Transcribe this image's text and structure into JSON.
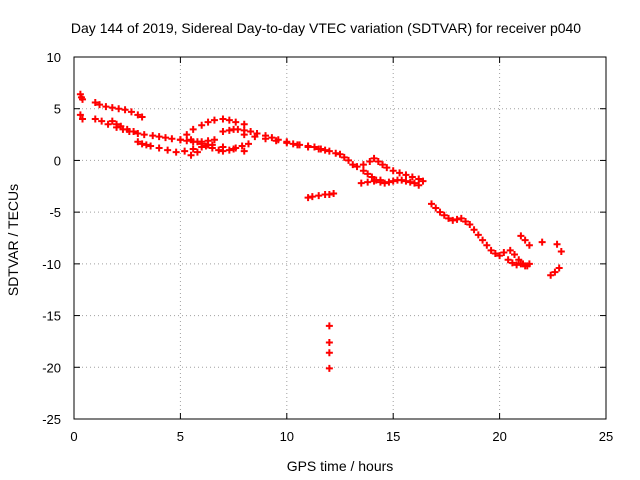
{
  "chart_data": {
    "type": "scatter",
    "title": "Day 144 of 2019, Sidereal Day-to-day VTEC variation (SDTVAR) for receiver p040",
    "xlabel": "GPS time / hours",
    "ylabel": "SDTVAR / TECUs",
    "xlim": [
      0,
      25
    ],
    "ylim": [
      -25,
      10
    ],
    "x_ticks": [
      0,
      5,
      10,
      15,
      20,
      25
    ],
    "x_tick_labels": [
      "0",
      "5",
      "10",
      "15",
      "20",
      "25"
    ],
    "y_ticks": [
      10,
      5,
      0,
      -5,
      -10,
      -15,
      -20,
      -25
    ],
    "y_tick_labels": [
      "10",
      "5",
      "0",
      "-5",
      "-10",
      "-15",
      "-20",
      "-25"
    ],
    "grid": true,
    "marker": "+",
    "series": [
      {
        "name": "SDTVAR",
        "color": "#ff0000",
        "x": [
          0.3,
          0.35,
          0.4,
          0.3,
          0.4,
          1.0,
          1.2,
          1.5,
          1.8,
          2.1,
          2.4,
          2.7,
          3.0,
          3.2,
          1.0,
          1.3,
          1.6,
          2.0,
          2.3,
          2.6,
          1.8,
          2.0,
          2.2,
          2.5,
          2.8,
          3.0,
          3.3,
          3.7,
          4.0,
          4.3,
          4.6,
          5.0,
          5.3,
          5.6,
          6.0,
          6.3,
          6.6,
          3.0,
          3.2,
          3.4,
          3.6,
          4.0,
          4.4,
          4.8,
          5.2,
          5.6,
          6.0,
          6.3,
          5.0,
          5.3,
          5.6,
          6.0,
          6.3,
          6.6,
          7.0,
          7.3,
          7.6,
          8.0,
          5.5,
          5.8,
          6.0,
          6.2,
          6.5,
          6.8,
          7.0,
          7.3,
          7.6,
          7.9,
          8.2,
          7.0,
          7.3,
          7.5,
          7.7,
          8.0,
          8.3,
          8.6,
          9.0,
          9.3,
          9.6,
          10.0,
          10.3,
          10.6,
          11.0,
          11.3,
          11.6,
          12.0,
          12.3,
          8.0,
          8.5,
          9.0,
          9.5,
          10.0,
          10.5,
          11.0,
          11.5,
          11.8,
          6.5,
          7.0,
          7.5,
          8.0,
          5.5,
          5.8,
          11.0,
          11.2,
          11.5,
          11.8,
          12.0,
          12.2,
          12.0,
          12.0,
          12.0,
          12.0,
          12.5,
          12.7,
          12.9,
          13.1,
          13.3,
          13.6,
          13.9,
          14.1,
          14.3,
          14.5,
          14.7,
          15.0,
          15.3,
          15.6,
          15.9,
          16.2,
          16.4,
          13.6,
          13.8,
          14.0,
          14.2,
          14.4,
          14.6,
          14.8,
          15.0,
          15.2,
          15.4,
          15.6,
          15.8,
          16.0,
          16.2,
          13.5,
          13.8,
          14.1,
          14.4,
          16.8,
          17.0,
          17.2,
          17.4,
          17.6,
          17.8,
          18.0,
          18.2,
          18.4,
          18.6,
          18.8,
          19.0,
          19.2,
          19.4,
          19.6,
          19.8,
          20.0,
          20.2,
          20.5,
          20.7,
          20.9,
          21.1,
          21.3,
          20.4,
          20.6,
          20.8,
          21.0,
          21.2,
          21.4,
          21.0,
          21.2,
          21.4,
          22.0,
          22.4,
          22.6,
          22.8,
          22.7,
          22.9
        ],
        "y": [
          6.4,
          6.1,
          5.9,
          4.4,
          4.0,
          5.6,
          5.4,
          5.2,
          5.1,
          5.0,
          4.9,
          4.7,
          4.4,
          4.2,
          4.0,
          3.8,
          3.5,
          3.2,
          3.0,
          2.8,
          3.8,
          3.5,
          3.3,
          3.0,
          2.8,
          2.6,
          2.5,
          2.4,
          2.3,
          2.2,
          2.1,
          2.0,
          1.9,
          1.8,
          1.8,
          1.9,
          2.0,
          1.8,
          1.6,
          1.5,
          1.4,
          1.2,
          1.0,
          0.8,
          0.9,
          1.1,
          1.3,
          1.5,
          2.0,
          2.5,
          3.0,
          3.4,
          3.7,
          3.9,
          4.0,
          3.9,
          3.7,
          3.5,
          2.0,
          1.8,
          1.6,
          1.4,
          1.2,
          1.0,
          0.9,
          1.0,
          1.2,
          1.4,
          1.6,
          2.8,
          2.9,
          3.0,
          3.0,
          2.9,
          2.8,
          2.6,
          2.4,
          2.2,
          2.0,
          1.8,
          1.6,
          1.5,
          1.4,
          1.3,
          1.1,
          0.9,
          0.7,
          2.5,
          2.3,
          2.1,
          1.9,
          1.7,
          1.5,
          1.3,
          1.1,
          1.0,
          1.5,
          1.3,
          1.1,
          0.9,
          0.5,
          0.8,
          -3.6,
          -3.5,
          -3.4,
          -3.3,
          -3.3,
          -3.2,
          -16.0,
          -17.6,
          -18.6,
          -20.1,
          0.6,
          0.3,
          0.0,
          -0.4,
          -0.6,
          -0.4,
          -0.1,
          0.2,
          -0.1,
          -0.4,
          -0.7,
          -1.0,
          -1.2,
          -1.4,
          -1.6,
          -1.8,
          -2.0,
          -1.0,
          -1.3,
          -1.6,
          -1.9,
          -2.1,
          -2.2,
          -2.1,
          -2.0,
          -1.9,
          -1.9,
          -2.0,
          -2.1,
          -2.2,
          -2.4,
          -2.2,
          -2.1,
          -2.0,
          -1.9,
          -4.2,
          -4.6,
          -5.0,
          -5.3,
          -5.6,
          -5.8,
          -5.7,
          -5.6,
          -5.9,
          -6.2,
          -6.7,
          -7.2,
          -7.7,
          -8.2,
          -8.7,
          -9.0,
          -9.2,
          -8.9,
          -8.7,
          -9.1,
          -9.6,
          -10.0,
          -10.2,
          -9.6,
          -9.9,
          -10.1,
          -10.0,
          -10.2,
          -10.0,
          -7.3,
          -7.7,
          -8.2,
          -7.9,
          -11.1,
          -10.8,
          -10.4,
          -8.1,
          -8.8
        ]
      }
    ]
  }
}
